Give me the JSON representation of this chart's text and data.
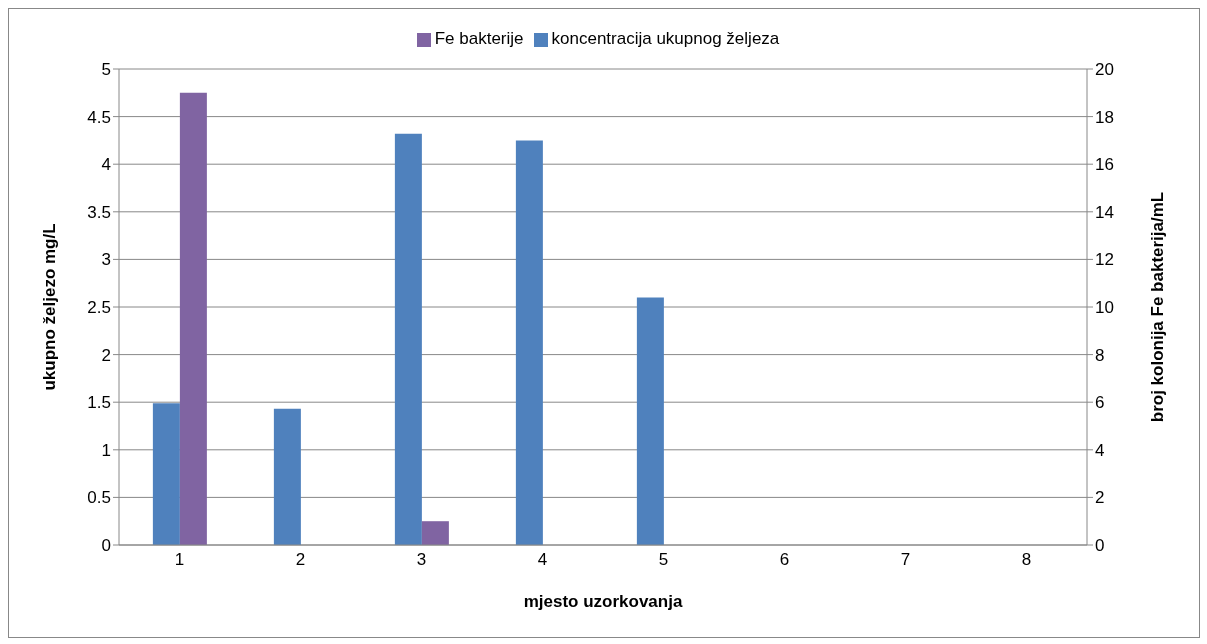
{
  "chart_data": {
    "type": "bar",
    "categories": [
      "1",
      "2",
      "3",
      "4",
      "5",
      "6",
      "7",
      "8"
    ],
    "series": [
      {
        "name": "koncentracija ukupnog željeza",
        "color": "#4f81bd",
        "values": [
          1.49,
          1.43,
          4.32,
          4.25,
          2.6,
          null,
          null,
          null
        ]
      },
      {
        "name": "Fe bakterije",
        "color": "#8064a2",
        "axis": "y2",
        "values": [
          19,
          0,
          1,
          0,
          0,
          null,
          null,
          null
        ]
      }
    ],
    "xlabel": "mjesto uzorkovanja",
    "ylabel": "ukupno željezo mg/L",
    "y2label": "broj kolonija Fe bakterija/mL",
    "ylim": [
      0,
      5
    ],
    "yticks": [
      0,
      0.5,
      1,
      1.5,
      2,
      2.5,
      3,
      3.5,
      4,
      4.5,
      5
    ],
    "y2lim": [
      0,
      20
    ],
    "y2ticks": [
      0,
      2,
      4,
      6,
      8,
      10,
      12,
      14,
      16,
      18,
      20
    ],
    "grid": "y",
    "legend": "top"
  }
}
